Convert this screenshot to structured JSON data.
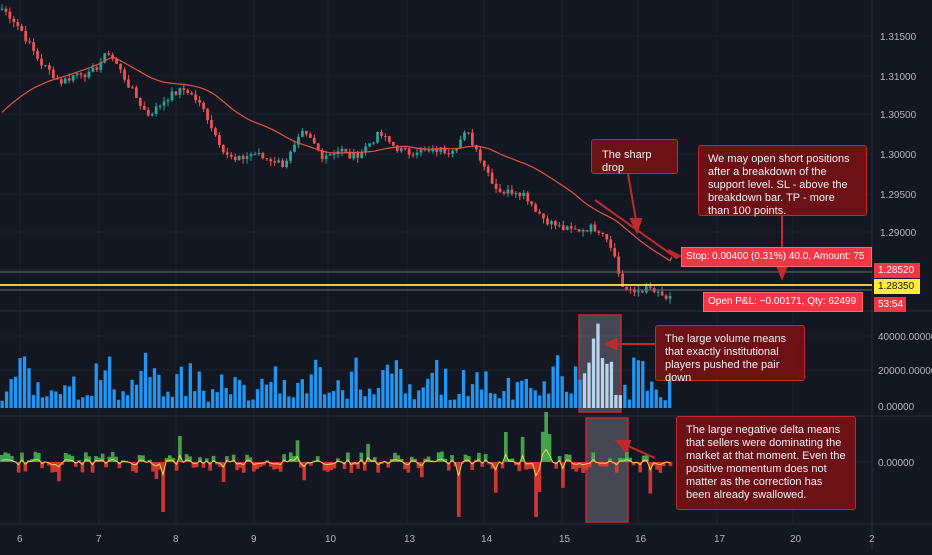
{
  "price_axis": {
    "ticks": [
      "1.31500",
      "1.31000",
      "1.30500",
      "1.30000",
      "1.29500",
      "1.29000"
    ],
    "stop_price": "1.28520",
    "current_price": "1.28350",
    "countdown": "53:54"
  },
  "volume_axis": {
    "ticks": [
      "40000.00000",
      "20000.00000",
      "0.00000"
    ]
  },
  "delta_axis": {
    "ticks": [
      "0.00000"
    ]
  },
  "time_axis": {
    "labels": [
      "6",
      "7",
      "8",
      "9",
      "10",
      "13",
      "14",
      "15",
      "16",
      "17",
      "20",
      "2"
    ]
  },
  "order_line": {
    "stop_text": "Stop: 0.00400 (0.31%) 40.0, Amount: 75",
    "pnl_text": "Open P&L: −0.00171, Qty: 62499"
  },
  "annotations": {
    "sharp_drop": "The sharp drop",
    "strategy": "We may open short positions after a breakdown of the support level. SL - above the breakdown bar. TP - more than 100 points.",
    "volume": "The large volume means that exactly institutional players pushed the pair down",
    "delta": "The large negative delta means that sellers were dominating the market at that moment. Even the positive momentum does not matter as the correction has been already swallowed."
  },
  "colors": {
    "background": "#131722",
    "bull": "#26a69a",
    "bear": "#ef5350",
    "ma": "#e2543e",
    "support": "#ffeb3b",
    "volume_bar": "#2196f3",
    "delta_pos": "#4caf50",
    "delta_neg": "#e53935",
    "callout": "#801014"
  },
  "chart_data": {
    "type": "candlestick",
    "instrument_hint": "price, volume and delta panes",
    "x_labels": [
      "6",
      "7",
      "8",
      "9",
      "10",
      "13",
      "14",
      "15",
      "16",
      "17",
      "20"
    ],
    "price_range": [
      1.2825,
      1.3185
    ],
    "price_path": [
      1.3175,
      1.3165,
      1.315,
      1.313,
      1.3112,
      1.3102,
      1.309,
      1.3095,
      1.3102,
      1.3098,
      1.311,
      1.3125,
      1.3108,
      1.3088,
      1.307,
      1.3052,
      1.306,
      1.3072,
      1.3078,
      1.3082,
      1.307,
      1.3055,
      1.303,
      1.301,
      1.2998,
      1.3003,
      1.3008,
      1.3002,
      1.3,
      1.2995,
      1.301,
      1.303,
      1.3022,
      1.3005,
      1.3008,
      1.3012,
      1.3003,
      1.3008,
      1.302,
      1.303,
      1.302,
      1.3012,
      1.3008,
      1.3012,
      1.3008,
      1.3012,
      1.301,
      1.3018,
      1.3032,
      1.3012,
      1.299,
      1.2968,
      1.2962,
      1.2965,
      1.296,
      1.2945,
      1.2932,
      1.2925,
      1.292,
      1.2918,
      1.292,
      1.2922,
      1.2918,
      1.29,
      1.2855,
      1.2845,
      1.285,
      1.285,
      1.2842,
      1.2838
    ],
    "moving_average_start": 1.3055,
    "moving_average_end": 1.2888,
    "support_level": 1.2835,
    "volume_range": [
      0,
      48000
    ],
    "volume_peak": 45000,
    "delta_zero": 0
  }
}
